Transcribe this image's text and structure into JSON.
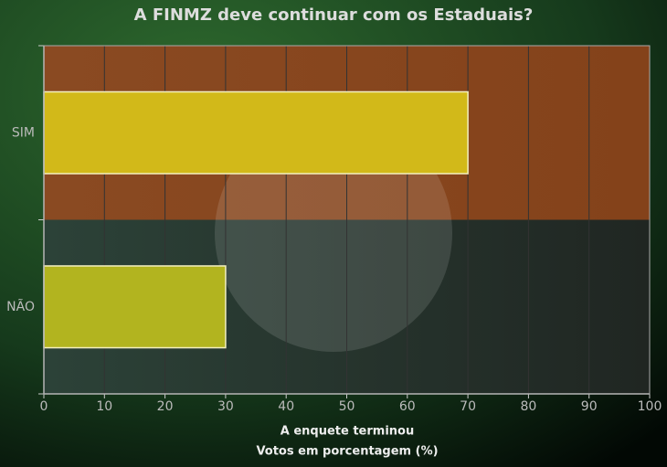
{
  "chart_data": {
    "type": "hbar",
    "title": "A FINMZ deve continuar com os Estaduais?",
    "categories": [
      "SIM",
      "NÃO"
    ],
    "values": [
      70,
      30
    ],
    "colors": [
      "#d2b919",
      "#b2b41f"
    ],
    "xlabel": [
      "A enquete terminou",
      "Votos em porcentagem (%)"
    ],
    "xlim": [
      0,
      100
    ],
    "xticks": [
      0,
      10,
      20,
      30,
      40,
      50,
      60,
      70,
      80,
      90,
      100
    ],
    "grid": true
  }
}
